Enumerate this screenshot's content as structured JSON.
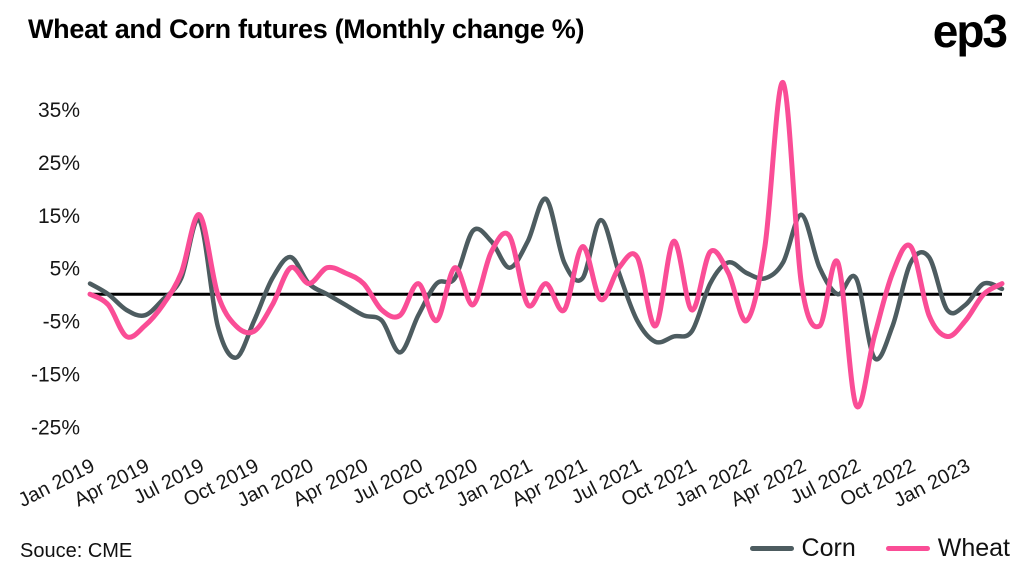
{
  "header": {
    "title": "Wheat and Corn futures (Monthly change %)",
    "logo": "ep3"
  },
  "footer": {
    "source": "Souce: CME"
  },
  "chart_data": {
    "type": "line",
    "title": "Wheat and Corn futures (Monthly change %)",
    "xlabel": "",
    "ylabel": "",
    "ylim": [
      -27,
      42
    ],
    "yticks": [
      35,
      25,
      15,
      5,
      -5,
      -15,
      -25
    ],
    "ytick_suffix": "%",
    "zero_line": true,
    "zero_line_color": "#000000",
    "grid": false,
    "legend_position": "bottom-right",
    "x_tick_every": 3,
    "x": [
      "Jan 2019",
      "Feb 2019",
      "Mar 2019",
      "Apr 2019",
      "May 2019",
      "Jun 2019",
      "Jul 2019",
      "Aug 2019",
      "Sep 2019",
      "Oct 2019",
      "Nov 2019",
      "Dec 2019",
      "Jan 2020",
      "Feb 2020",
      "Mar 2020",
      "Apr 2020",
      "May 2020",
      "Jun 2020",
      "Jul 2020",
      "Aug 2020",
      "Sep 2020",
      "Oct 2020",
      "Nov 2020",
      "Dec 2020",
      "Jan 2021",
      "Feb 2021",
      "Mar 2021",
      "Apr 2021",
      "May 2021",
      "Jun 2021",
      "Jul 2021",
      "Aug 2021",
      "Sep 2021",
      "Oct 2021",
      "Nov 2021",
      "Dec 2021",
      "Jan 2022",
      "Feb 2022",
      "Mar 2022",
      "Apr 2022",
      "May 2022",
      "Jun 2022",
      "Jul 2022",
      "Aug 2022",
      "Sep 2022",
      "Oct 2022",
      "Nov 2022",
      "Dec 2022",
      "Jan 2023",
      "Feb 2023",
      "Mar 2023"
    ],
    "series": [
      {
        "name": "Corn",
        "color": "#4d5c60",
        "values": [
          2,
          0,
          -3,
          -4,
          -1,
          3,
          14,
          -6,
          -12,
          -5,
          3,
          7,
          2,
          0,
          -2,
          -4,
          -5,
          -11,
          -4,
          2,
          3,
          12,
          10,
          5,
          10,
          18,
          6,
          3,
          14,
          4,
          -5,
          -9,
          -8,
          -7,
          2,
          6,
          4,
          3,
          6,
          15,
          5,
          0,
          3,
          -12,
          -6,
          6,
          7,
          -3,
          -2,
          2,
          1
        ]
      },
      {
        "name": "Wheat",
        "color": "#fa4d96",
        "values": [
          0,
          -2,
          -8,
          -6,
          -2,
          4,
          15,
          0,
          -6,
          -7,
          -2,
          5,
          2,
          5,
          4,
          2,
          -3,
          -4,
          2,
          -5,
          5,
          -2,
          8,
          11,
          -2,
          2,
          -3,
          9,
          -1,
          5,
          7,
          -6,
          10,
          -3,
          8,
          4,
          -5,
          9,
          40,
          2,
          -6,
          6,
          -21,
          -8,
          4,
          9,
          -4,
          -8,
          -5,
          0,
          2
        ]
      }
    ]
  }
}
